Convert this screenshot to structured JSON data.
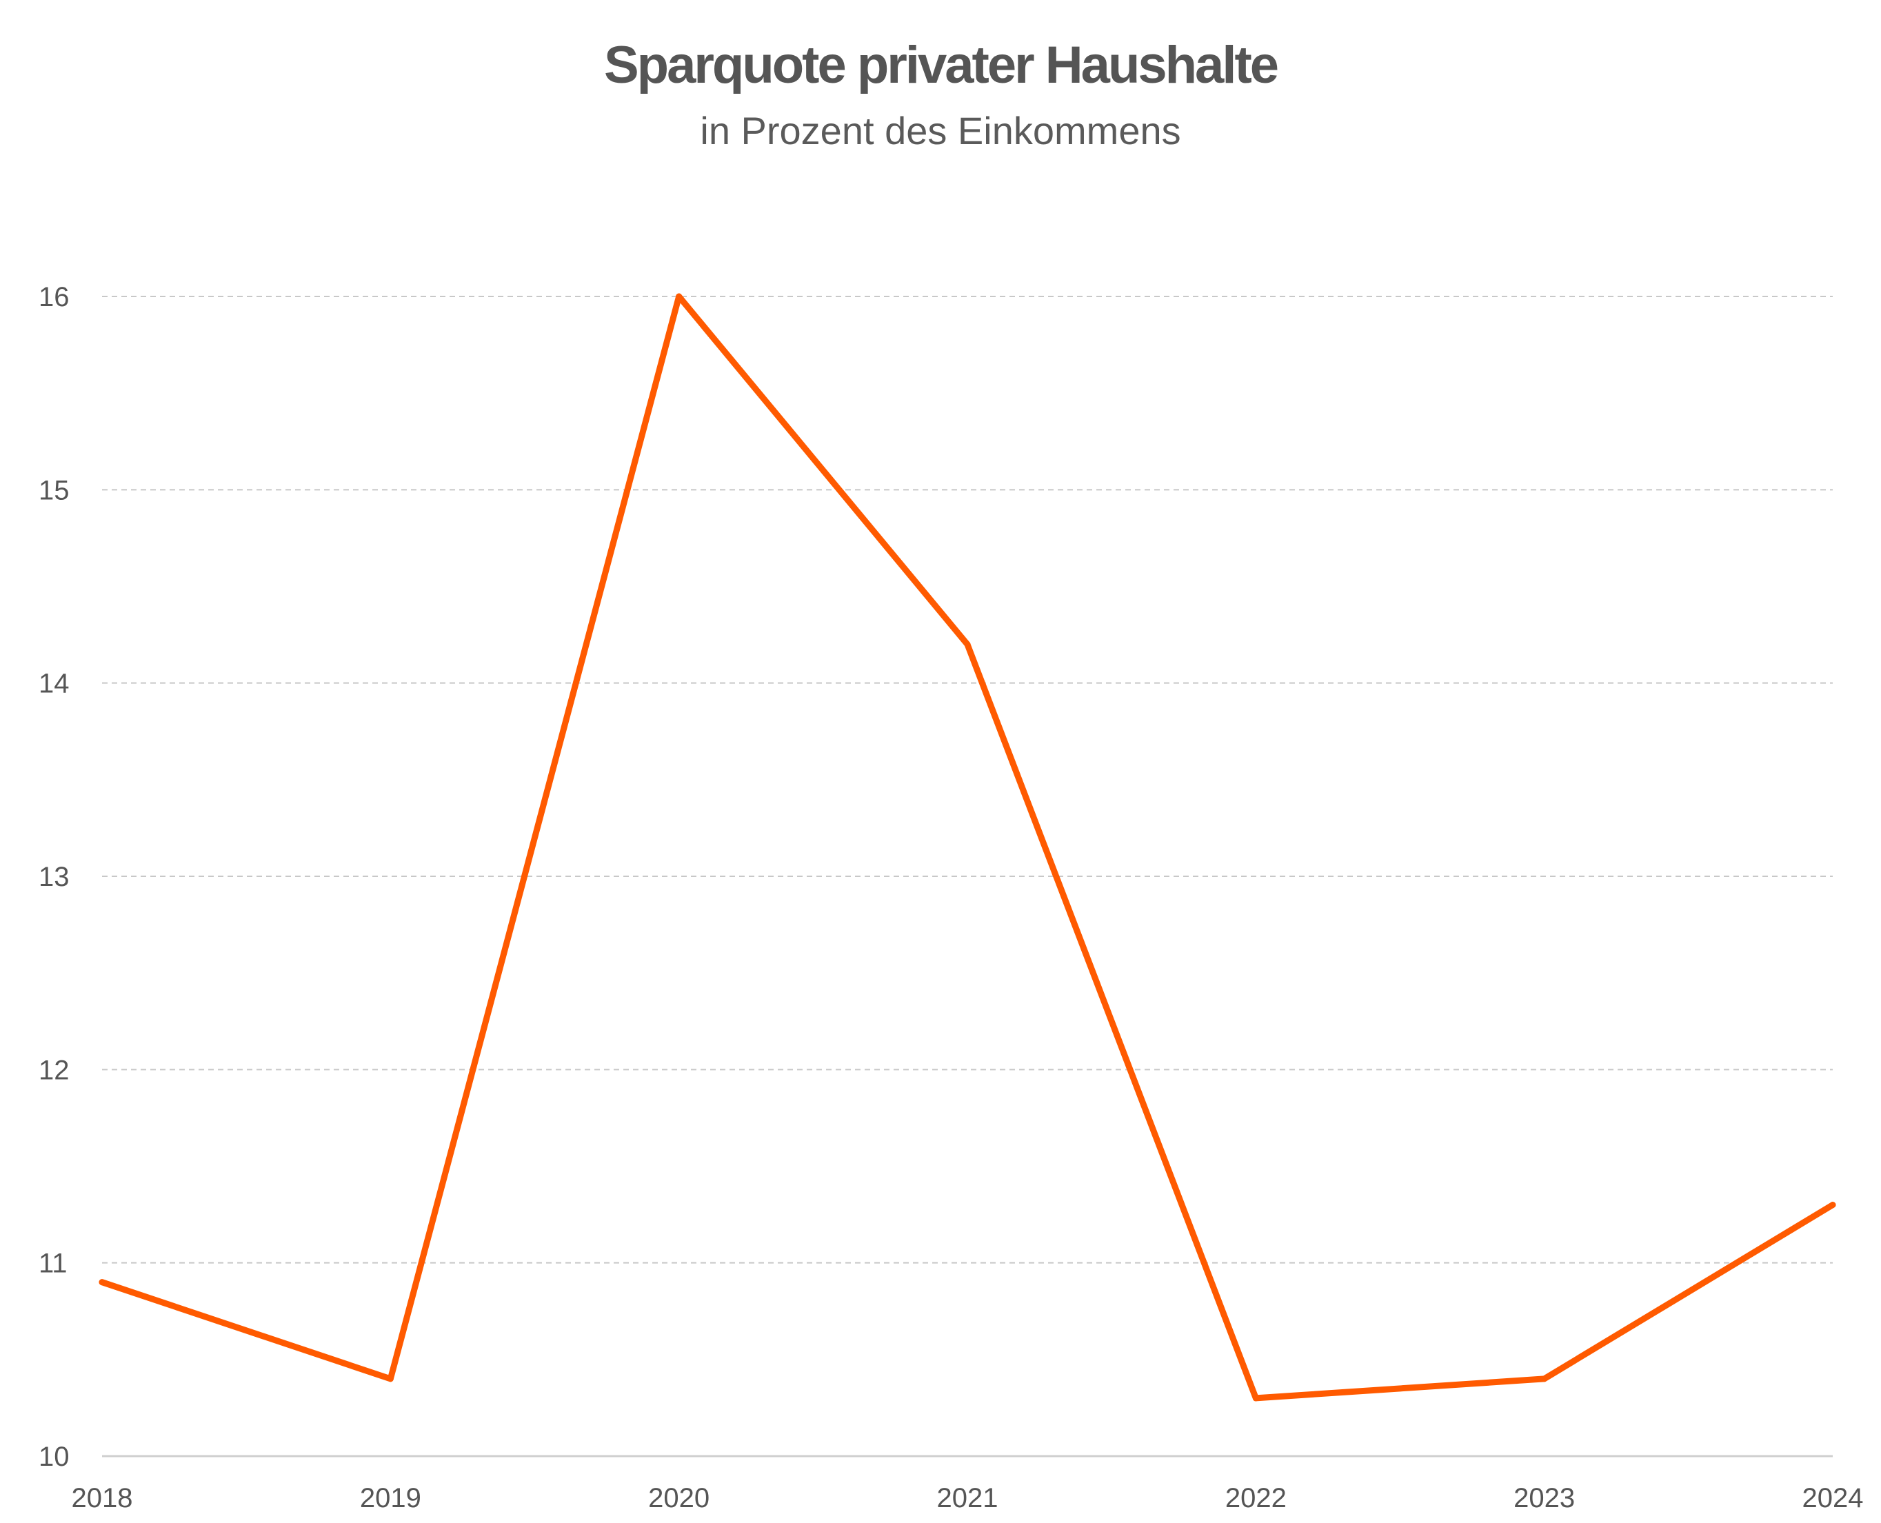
{
  "chart_data": {
    "type": "line",
    "title": "Sparquote privater Haushalte",
    "subtitle": "in Prozent des Einkommens",
    "xlabel": "",
    "ylabel": "",
    "categories": [
      "2018",
      "2019",
      "2020",
      "2021",
      "2022",
      "2023",
      "2024"
    ],
    "series": [
      {
        "values": [
          10.9,
          10.4,
          16.0,
          14.2,
          10.3,
          10.4,
          11.3
        ],
        "color": "#ff5a00"
      }
    ],
    "ylim": [
      10,
      16
    ],
    "yticks": [
      "10",
      "11",
      "12",
      "13",
      "14",
      "15",
      "16"
    ],
    "grid": true,
    "grid_style": "dashed horizontal",
    "legend": "none"
  }
}
